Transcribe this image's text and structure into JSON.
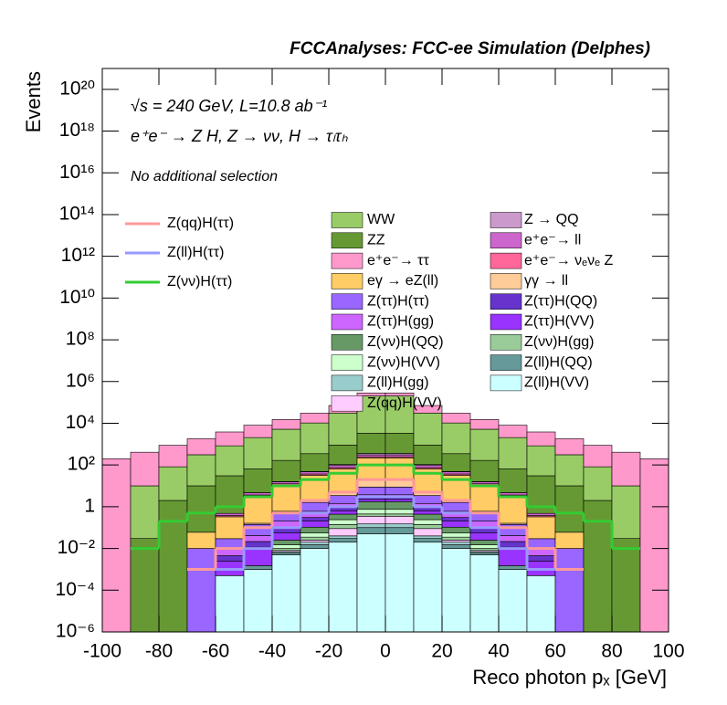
{
  "chart_data": {
    "type": "histogram",
    "title": "FCCAnalyses: FCC-ee Simulation (Delphes)",
    "annotations": [
      "√s = 240 GeV, L=10.8 ab⁻¹",
      "e⁺e⁻ → Z H, Z → νν, H → τₗτₕ",
      "No additional selection"
    ],
    "x_label": "Reco photon pₓ [GeV]",
    "y_label": "Events",
    "log_y": true,
    "stacked": true,
    "bins": [
      -100,
      -90,
      -80,
      -70,
      -60,
      -50,
      -40,
      -30,
      -20,
      -10,
      0,
      10,
      20,
      30,
      40,
      50,
      60,
      70,
      80,
      90,
      100
    ],
    "xlim": [
      -100,
      100
    ],
    "xticks": [
      -100,
      -80,
      -60,
      -40,
      -20,
      0,
      20,
      40,
      60,
      80,
      100
    ],
    "ylim": [
      1e-06,
      1e+21
    ],
    "yticks": [
      {
        "value": 1e-06,
        "label": "10⁻⁶"
      },
      {
        "value": 0.0001,
        "label": "10⁻⁴"
      },
      {
        "value": 0.01,
        "label": "10⁻²"
      },
      1,
      {
        "value": 100.0,
        "label": "10²"
      },
      {
        "value": 10000.0,
        "label": "10⁴"
      },
      {
        "value": 1000000.0,
        "label": "10⁶"
      },
      {
        "value": 100000000.0,
        "label": "10⁸"
      },
      {
        "value": 10000000000.0,
        "label": "10¹⁰"
      },
      {
        "value": 1000000000000.0,
        "label": "10¹²"
      },
      {
        "value": 100000000000000.0,
        "label": "10¹⁴"
      },
      {
        "value": 1e+16,
        "label": "10¹⁶"
      },
      {
        "value": 1e+18,
        "label": "10¹⁸"
      },
      {
        "value": 1e+20,
        "label": "10²⁰"
      }
    ],
    "series": [
      {
        "name": "Z(ll)H(VV)",
        "color": "#ccffff",
        "values": [
          0,
          0,
          0,
          0,
          0.0005,
          0.001,
          0.005,
          0.01,
          0.02,
          0.05,
          0.05,
          0.02,
          0.01,
          0.005,
          0.001,
          0.0005,
          0,
          0,
          0,
          0
        ]
      },
      {
        "name": "Z(ll)H(QQ)",
        "color": "#669999",
        "values": [
          0,
          0,
          0,
          0,
          0,
          0.0005,
          0.001,
          0.005,
          0.01,
          0.05,
          0.05,
          0.01,
          0.005,
          0.001,
          0.0005,
          0,
          0,
          0,
          0,
          0
        ]
      },
      {
        "name": "Z(ll)H(gg)",
        "color": "#99cccc",
        "values": [
          0,
          0,
          0,
          0,
          0,
          0,
          0.001,
          0.005,
          0.01,
          0.05,
          0.05,
          0.01,
          0.005,
          0.001,
          0,
          0,
          0,
          0,
          0,
          0
        ]
      },
      {
        "name": "Z(qq)H(VV)",
        "color": "#ffccff",
        "values": [
          0,
          0,
          0,
          0,
          0,
          0,
          0.001,
          0.005,
          0.05,
          0.2,
          0.2,
          0.05,
          0.005,
          0.001,
          0,
          0,
          0,
          0,
          0,
          0
        ]
      },
      {
        "name": "Z(νν)H(gg)",
        "color": "#99cc99",
        "values": [
          0,
          0,
          0,
          0,
          0,
          0,
          0.002,
          0.01,
          0.05,
          0.1,
          0.1,
          0.05,
          0.01,
          0.002,
          0,
          0,
          0,
          0,
          0,
          0
        ]
      },
      {
        "name": "Z(νν)H(VV)",
        "color": "#ccffcc",
        "values": [
          0,
          0,
          0,
          0,
          0,
          0,
          0.005,
          0.02,
          0.1,
          0.3,
          0.3,
          0.1,
          0.02,
          0.005,
          0,
          0,
          0,
          0,
          0,
          0
        ]
      },
      {
        "name": "Z(νν)H(QQ)",
        "color": "#669966",
        "values": [
          0,
          0,
          0,
          0,
          0,
          0,
          0.01,
          0.05,
          0.2,
          1,
          1,
          0.2,
          0.05,
          0.01,
          0,
          0,
          0,
          0,
          0,
          0
        ]
      },
      {
        "name": "Z(ττ)H(VV)",
        "color": "#9933ff",
        "values": [
          0,
          0,
          0,
          0,
          0.002,
          0.01,
          0.03,
          0.1,
          0.2,
          0.5,
          0.5,
          0.2,
          0.1,
          0.03,
          0.01,
          0.002,
          0,
          0,
          0,
          0
        ]
      },
      {
        "name": "Z(ττ)H(QQ)",
        "color": "#6633cc",
        "values": [
          0,
          0,
          0,
          0,
          0.002,
          0.01,
          0.05,
          0.1,
          0.3,
          0.5,
          0.5,
          0.3,
          0.1,
          0.05,
          0.01,
          0.002,
          0,
          0,
          0,
          0
        ]
      },
      {
        "name": "Z(ττ)H(gg)",
        "color": "#cc66ff",
        "values": [
          0,
          0,
          0,
          0,
          0.005,
          0.02,
          0.1,
          0.3,
          0.5,
          1,
          1,
          0.5,
          0.3,
          0.1,
          0.02,
          0.005,
          0,
          0,
          0,
          0
        ]
      },
      {
        "name": "Z(ττ)H(ττ)",
        "color": "#9966ff",
        "values": [
          0,
          0,
          0,
          0.01,
          0.02,
          0.1,
          0.3,
          1,
          2,
          5,
          5,
          2,
          1,
          0.3,
          0.1,
          0.02,
          0.01,
          0,
          0,
          0
        ]
      },
      {
        "name": "γγ → ll",
        "color": "#ffcc99",
        "values": [
          0,
          0,
          0,
          0,
          0,
          0.02,
          0.1,
          0.5,
          2,
          10,
          10,
          2,
          0.5,
          0.1,
          0.02,
          0,
          0,
          0,
          0,
          0
        ]
      },
      {
        "name": "eγ → eZ(ll)",
        "color": "#ffcc66",
        "values": [
          0,
          0,
          0,
          0.05,
          0.3,
          3,
          10,
          30,
          60,
          200,
          200,
          60,
          30,
          10,
          3,
          0.3,
          0.05,
          0,
          0,
          0
        ]
      },
      {
        "name": "e⁺e⁻→ νₑνₑ Z",
        "color": "#ff6699",
        "values": [
          0,
          0,
          0,
          0,
          0.05,
          0.5,
          2,
          5,
          10,
          30,
          30,
          10,
          5,
          2,
          0.5,
          0.05,
          0,
          0,
          0,
          0
        ]
      },
      {
        "name": "e⁺e⁻→ ll",
        "color": "#cc66cc",
        "values": [
          0,
          0,
          0,
          0,
          0.1,
          1,
          3,
          10,
          20,
          60,
          60,
          20,
          10,
          3,
          1,
          0.1,
          0,
          0,
          0,
          0
        ]
      },
      {
        "name": "Z → QQ",
        "color": "#cc99cc",
        "values": [
          0,
          0,
          0,
          0,
          0,
          0.05,
          0.5,
          2,
          10,
          50,
          50,
          10,
          2,
          0.5,
          0.05,
          0,
          0,
          0,
          0,
          0
        ]
      },
      {
        "name": "ZZ",
        "color": "#669933",
        "values": [
          0,
          0.03,
          2,
          10,
          30,
          60,
          150,
          300,
          800,
          3000,
          3000,
          800,
          300,
          150,
          60,
          30,
          10,
          2,
          0.03,
          0
        ]
      },
      {
        "name": "WW",
        "color": "#99cc66",
        "values": [
          0,
          10,
          80,
          300,
          800,
          2000,
          5000,
          10000,
          30000,
          200000,
          200000,
          30000,
          10000,
          5000,
          2000,
          800,
          300,
          80,
          10,
          0
        ]
      },
      {
        "name": "e⁺e⁻→ ττ",
        "color": "#ff99cc",
        "values": [
          200,
          400,
          800,
          1500,
          3000,
          6000,
          10000,
          20000,
          40000,
          80000,
          80000,
          40000,
          20000,
          10000,
          6000,
          3000,
          1500,
          800,
          400,
          200
        ]
      }
    ],
    "signal_series": [
      {
        "name": "Z(qq)H(ττ)",
        "color": "#ff9999",
        "values": [
          null,
          null,
          null,
          0.001,
          0.01,
          0.1,
          0.5,
          2,
          5,
          20,
          20,
          5,
          2,
          0.5,
          0.1,
          0.01,
          0.001,
          null,
          null,
          null
        ]
      },
      {
        "name": "Z(ll)H(ττ)",
        "color": "#9999ff",
        "values": [
          null,
          null,
          null,
          null,
          0.001,
          0.01,
          0.1,
          0.5,
          1,
          3,
          3,
          1,
          0.5,
          0.1,
          0.01,
          0.001,
          null,
          null,
          null,
          null
        ]
      },
      {
        "name": "Z(νν)H(ττ)",
        "color": "#33cc33",
        "values": [
          null,
          0.01,
          0.2,
          0.5,
          1,
          3,
          10,
          20,
          40,
          100,
          100,
          40,
          20,
          10,
          3,
          1,
          0.5,
          0.2,
          0.01,
          null
        ]
      }
    ]
  }
}
